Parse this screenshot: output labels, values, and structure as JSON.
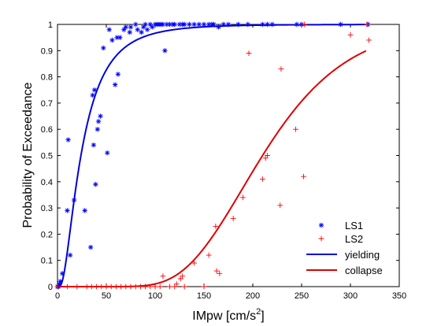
{
  "chart_data": {
    "type": "scatter",
    "title": "",
    "xlabel": "IMpw [cm/s",
    "xlabel_sup": "2",
    "xlabel_end": "]",
    "ylabel": "Probability of Exceedance",
    "xlim": [
      0,
      350
    ],
    "ylim": [
      0,
      1
    ],
    "xticks": [
      "0",
      "50",
      "100",
      "150",
      "200",
      "250",
      "300",
      "350"
    ],
    "yticks": [
      "0",
      "0.1",
      "0.2",
      "0.3",
      "0.4",
      "0.5",
      "0.6",
      "0.7",
      "0.8",
      "0.9",
      "1"
    ],
    "grid": false,
    "legend_position": "bottom-right",
    "series": [
      {
        "name": "LS1",
        "kind": "scatter",
        "marker": "asterisk",
        "color": "#0000ff",
        "points": [
          [
            0,
            0
          ],
          [
            1,
            0
          ],
          [
            2,
            0.01
          ],
          [
            3,
            0.02
          ],
          [
            5,
            0.05
          ],
          [
            10,
            0.29
          ],
          [
            11,
            0.56
          ],
          [
            13,
            0.12
          ],
          [
            17,
            0.33
          ],
          [
            28,
            0.29
          ],
          [
            34,
            0.15
          ],
          [
            36,
            0.73
          ],
          [
            37,
            0.54
          ],
          [
            38,
            0.75
          ],
          [
            39,
            0.39
          ],
          [
            41,
            0.6
          ],
          [
            42,
            0.63
          ],
          [
            44,
            0.65
          ],
          [
            47,
            0.91
          ],
          [
            51,
            0.51
          ],
          [
            53,
            0.98
          ],
          [
            56,
            0.94
          ],
          [
            59,
            0.77
          ],
          [
            61,
            0.95
          ],
          [
            62,
            0.81
          ],
          [
            64,
            0.95
          ],
          [
            68,
            0.98
          ],
          [
            70,
            0.99
          ],
          [
            74,
            0.97
          ],
          [
            75,
            0.99
          ],
          [
            80,
            1
          ],
          [
            82,
            0.98
          ],
          [
            86,
            0.97
          ],
          [
            88,
            0.99
          ],
          [
            90,
            1
          ],
          [
            92,
            0.98
          ],
          [
            95,
            1
          ],
          [
            97,
            0.99
          ],
          [
            100,
            1
          ],
          [
            102,
            1
          ],
          [
            104,
            1
          ],
          [
            106,
            1
          ],
          [
            108,
            1
          ],
          [
            110,
            0.9
          ],
          [
            112,
            1
          ],
          [
            115,
            1
          ],
          [
            118,
            1
          ],
          [
            120,
            1
          ],
          [
            125,
            1
          ],
          [
            128,
            1
          ],
          [
            130,
            1
          ],
          [
            135,
            1
          ],
          [
            140,
            1
          ],
          [
            145,
            1
          ],
          [
            150,
            1
          ],
          [
            155,
            1
          ],
          [
            158,
            1
          ],
          [
            160,
            1
          ],
          [
            165,
            0.99
          ],
          [
            170,
            1
          ],
          [
            175,
            1
          ],
          [
            185,
            1
          ],
          [
            195,
            1
          ],
          [
            210,
            1
          ],
          [
            215,
            1
          ],
          [
            220,
            1
          ],
          [
            245,
            1
          ],
          [
            250,
            1
          ],
          [
            290,
            1
          ],
          [
            318,
            1
          ]
        ]
      },
      {
        "name": "LS2",
        "kind": "scatter",
        "marker": "plus",
        "color": "#ff0000",
        "points": [
          [
            0,
            0
          ],
          [
            10,
            0
          ],
          [
            20,
            0
          ],
          [
            30,
            0
          ],
          [
            35,
            0
          ],
          [
            40,
            0
          ],
          [
            45,
            0
          ],
          [
            50,
            0
          ],
          [
            55,
            0
          ],
          [
            60,
            0
          ],
          [
            65,
            0
          ],
          [
            70,
            0
          ],
          [
            75,
            0
          ],
          [
            80,
            0
          ],
          [
            85,
            0
          ],
          [
            90,
            0
          ],
          [
            95,
            0
          ],
          [
            100,
            0
          ],
          [
            105,
            0
          ],
          [
            108,
            0.04
          ],
          [
            115,
            0
          ],
          [
            120,
            0
          ],
          [
            122,
            0.01
          ],
          [
            126,
            0.03
          ],
          [
            128,
            0.04
          ],
          [
            130,
            0
          ],
          [
            140,
            0.09
          ],
          [
            150,
            0
          ],
          [
            155,
            0.12
          ],
          [
            162,
            0.23
          ],
          [
            163,
            0.06
          ],
          [
            166,
            0.05
          ],
          [
            180,
            0.26
          ],
          [
            190,
            0.34
          ],
          [
            196,
            0.89
          ],
          [
            210,
            0.41
          ],
          [
            213,
            0.49
          ],
          [
            215,
            0.5
          ],
          [
            228,
            0.31
          ],
          [
            229,
            0.83
          ],
          [
            244,
            0.6
          ],
          [
            252,
            0.42
          ],
          [
            253,
            1
          ],
          [
            300,
            0.96
          ],
          [
            317,
            1
          ],
          [
            319,
            0.94
          ]
        ]
      },
      {
        "name": "yielding",
        "kind": "line",
        "color": "#0000dd",
        "median": 24,
        "beta": 0.78
      },
      {
        "name": "collapse",
        "kind": "line",
        "color": "#dd0000",
        "median": 210,
        "beta": 0.32
      }
    ]
  }
}
